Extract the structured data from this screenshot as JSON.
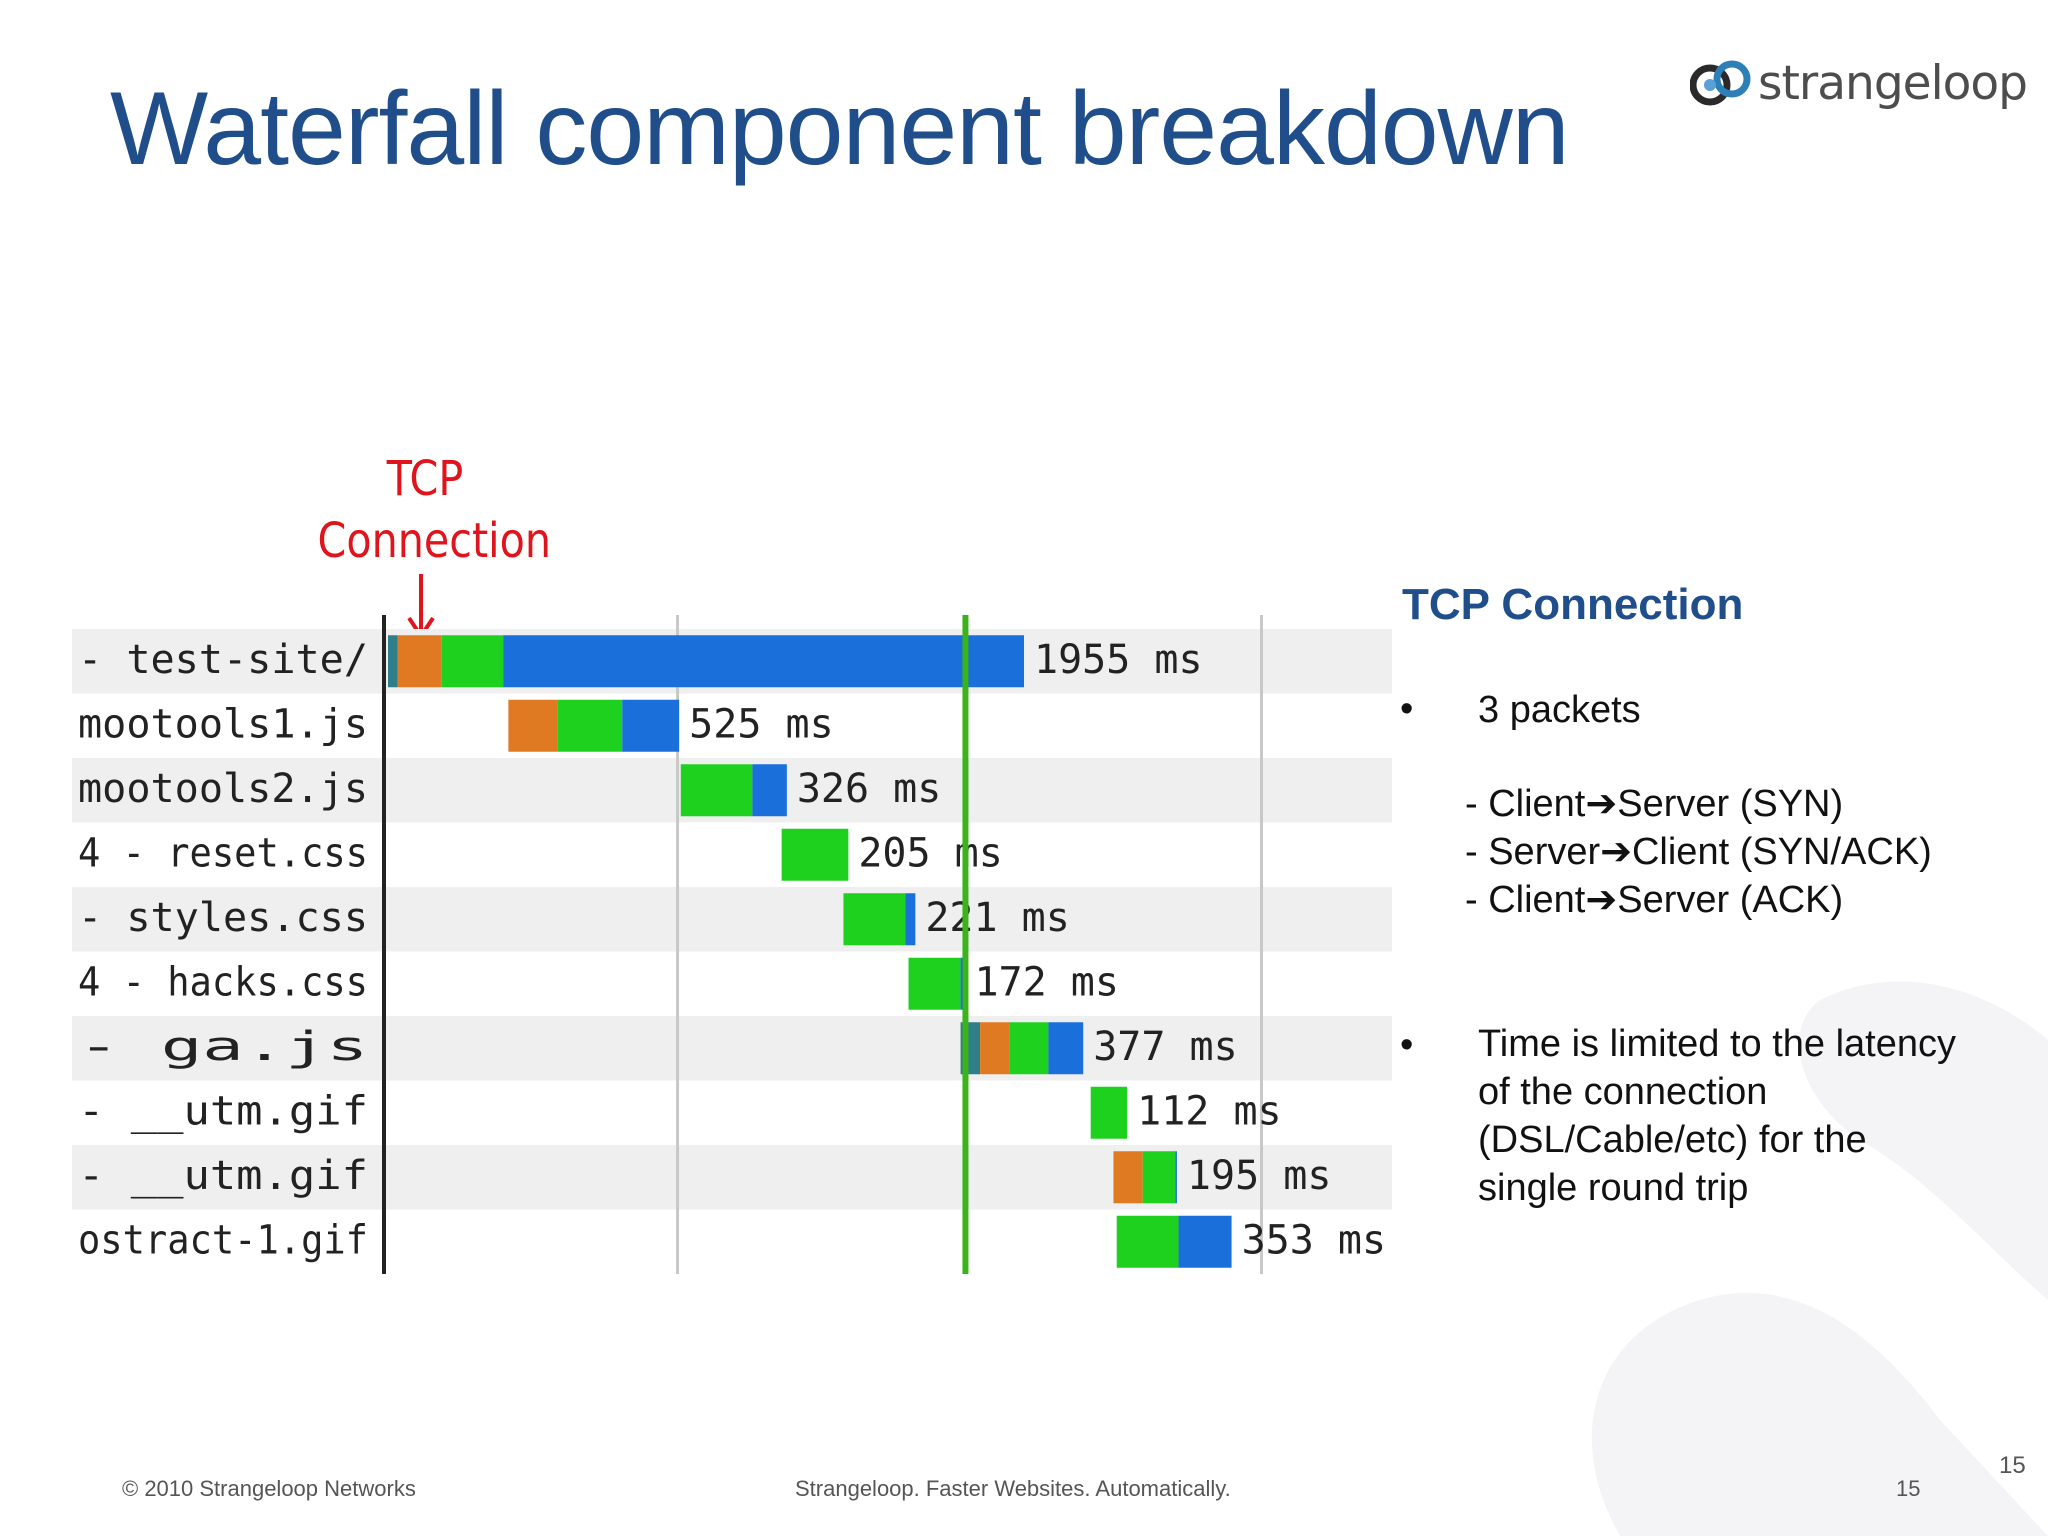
{
  "slide": {
    "title": "Waterfall component breakdown",
    "logo_text": "strangeloop",
    "page_number": "15",
    "corner_number": "15"
  },
  "callout": {
    "line1": "TCP",
    "line2": "Connection",
    "color": "#e0141c"
  },
  "right_panel": {
    "heading": "TCP Connection",
    "bullet_char": "•",
    "bullet1": "3 packets",
    "packets": [
      {
        "from": "- Client",
        "to": "Server (SYN)"
      },
      {
        "from": "- Server",
        "to": "Client (SYN/ACK)"
      },
      {
        "from": "- Client",
        "to": "Server (ACK)"
      }
    ],
    "bullet2_lines": [
      "Time is limited to the latency",
      "of the connection",
      "(DSL/Cable/etc) for the",
      "single round trip"
    ]
  },
  "footer": {
    "copyright": "© 2010 Strangeloop Networks",
    "tagline": "Strangeloop. Faster Websites. Automatically."
  },
  "colors": {
    "title": "#1f4e8a",
    "dns": "#2f7f8a",
    "connect": "#e07a22",
    "wait": "#1fd11f",
    "receive": "#1a6fdb",
    "marker": "#3bb31a"
  },
  "chart_data": {
    "type": "bar",
    "orientation": "horizontal-waterfall",
    "unit": "ms",
    "rows": [
      {
        "label": "- test-site/",
        "time_label": "1955 ms",
        "total": 1955,
        "start": 0,
        "segments": {
          "dns": 30,
          "connect": 135,
          "wait": 190,
          "receive": 1600
        }
      },
      {
        "label": "mootools1.js",
        "time_label": "525 ms",
        "total": 525,
        "start": 370,
        "segments": {
          "dns": 0,
          "connect": 150,
          "wait": 200,
          "receive": 175
        }
      },
      {
        "label": "mootools2.js",
        "time_label": "326 ms",
        "total": 326,
        "start": 900,
        "segments": {
          "dns": 0,
          "connect": 0,
          "wait": 220,
          "receive": 106
        }
      },
      {
        "label": "4 - reset.css",
        "time_label": "205 ms",
        "total": 205,
        "start": 1210,
        "segments": {
          "dns": 0,
          "connect": 0,
          "wait": 205,
          "receive": 0
        }
      },
      {
        "label": "- styles.css",
        "time_label": "221 ms",
        "total": 221,
        "start": 1400,
        "segments": {
          "dns": 0,
          "connect": 0,
          "wait": 190,
          "receive": 31
        }
      },
      {
        "label": "4 - hacks.css",
        "time_label": "172 ms",
        "total": 172,
        "start": 1600,
        "segments": {
          "dns": 0,
          "connect": 0,
          "wait": 160,
          "receive": 12
        }
      },
      {
        "label": "- ga.js",
        "time_label": "377 ms",
        "total": 377,
        "start": 1760,
        "segments": {
          "dns": 60,
          "connect": 90,
          "wait": 120,
          "receive": 107
        }
      },
      {
        "label": "- __utm.gif",
        "time_label": "112 ms",
        "total": 112,
        "start": 2160,
        "segments": {
          "dns": 0,
          "connect": 0,
          "wait": 112,
          "receive": 0
        }
      },
      {
        "label": "- __utm.gif",
        "time_label": "195 ms",
        "total": 195,
        "start": 2230,
        "segments": {
          "dns": 0,
          "connect": 90,
          "wait": 100,
          "receive": 5
        }
      },
      {
        "label": "ostract-1.gif",
        "time_label": "353 ms",
        "total": 353,
        "start": 2240,
        "segments": {
          "dns": 0,
          "connect": 0,
          "wait": 190,
          "receive": 163
        }
      }
    ],
    "marker_ms": 1775,
    "x_range_ms": [
      0,
      3080
    ],
    "gridlines_ms": [
      890,
      1775,
      2685
    ],
    "grid": true,
    "title": "",
    "xlabel": "",
    "ylabel": ""
  }
}
